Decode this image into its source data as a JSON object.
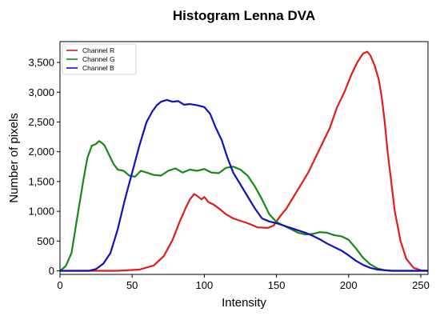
{
  "chart_data": {
    "type": "line",
    "title": "Histogram Lenna DVA",
    "xlabel": "Intensity",
    "ylabel": "Number of pixels",
    "xlim": [
      0,
      255
    ],
    "ylim": [
      -60,
      3850
    ],
    "xticks": [
      0,
      50,
      100,
      150,
      200,
      250
    ],
    "yticks": [
      0,
      500,
      1000,
      1500,
      2000,
      2500,
      3000,
      3500
    ],
    "xtick_labels": [
      "0",
      "50",
      "100",
      "150",
      "200",
      "250"
    ],
    "ytick_labels": [
      "0",
      "500",
      "1,000",
      "1,500",
      "2,000",
      "2,500",
      "3,000",
      "3,500"
    ],
    "grid": false,
    "legend_position": "top-left",
    "series": [
      {
        "name": "Channel R",
        "color": "#dd1c1c",
        "x": [
          0,
          40,
          55,
          65,
          72,
          78,
          83,
          87,
          90,
          93,
          95,
          98,
          100,
          103,
          106,
          110,
          115,
          120,
          125,
          130,
          137,
          144,
          148,
          152,
          157,
          162,
          167,
          172,
          177,
          182,
          187,
          192,
          197,
          202,
          206,
          210,
          213,
          215,
          218,
          221,
          223,
          225,
          227,
          229,
          232,
          236,
          240,
          245,
          250,
          255
        ],
        "y": [
          0,
          0,
          20,
          90,
          250,
          520,
          830,
          1050,
          1200,
          1290,
          1260,
          1200,
          1240,
          1150,
          1120,
          1050,
          950,
          880,
          840,
          800,
          730,
          720,
          760,
          900,
          1050,
          1250,
          1450,
          1650,
          1900,
          2150,
          2400,
          2750,
          3000,
          3300,
          3500,
          3650,
          3680,
          3620,
          3450,
          3200,
          2900,
          2500,
          2000,
          1600,
          1000,
          500,
          200,
          50,
          10,
          0
        ]
      },
      {
        "name": "Channel G",
        "color": "#158a15",
        "x": [
          0,
          4,
          8,
          12,
          16,
          19,
          22,
          25,
          27,
          29,
          31,
          34,
          37,
          40,
          44,
          48,
          52,
          56,
          60,
          65,
          70,
          75,
          80,
          85,
          90,
          95,
          100,
          105,
          110,
          115,
          120,
          125,
          130,
          135,
          140,
          145,
          150,
          155,
          160,
          165,
          170,
          175,
          180,
          185,
          190,
          195,
          200,
          205,
          210,
          215,
          220,
          225,
          230,
          235,
          255
        ],
        "y": [
          0,
          80,
          300,
          900,
          1500,
          1900,
          2100,
          2130,
          2180,
          2150,
          2100,
          1950,
          1800,
          1700,
          1680,
          1600,
          1580,
          1680,
          1650,
          1610,
          1600,
          1680,
          1720,
          1650,
          1700,
          1680,
          1710,
          1650,
          1640,
          1730,
          1750,
          1700,
          1600,
          1420,
          1200,
          950,
          820,
          760,
          700,
          640,
          610,
          620,
          650,
          640,
          600,
          580,
          520,
          380,
          220,
          110,
          40,
          10,
          0,
          0,
          0
        ]
      },
      {
        "name": "Channel B",
        "color": "#1010c0",
        "x": [
          0,
          20,
          25,
          30,
          35,
          40,
          45,
          50,
          55,
          60,
          64,
          67,
          70,
          74,
          78,
          82,
          86,
          90,
          95,
          100,
          104,
          108,
          112,
          116,
          120,
          125,
          130,
          135,
          140,
          145,
          150,
          155,
          160,
          165,
          170,
          175,
          180,
          185,
          190,
          195,
          200,
          205,
          210,
          215,
          220,
          230,
          255
        ],
        "y": [
          0,
          0,
          30,
          120,
          300,
          700,
          1200,
          1650,
          2100,
          2500,
          2680,
          2780,
          2840,
          2870,
          2840,
          2850,
          2790,
          2800,
          2780,
          2750,
          2640,
          2400,
          2200,
          1900,
          1650,
          1450,
          1250,
          1050,
          880,
          830,
          800,
          760,
          720,
          680,
          640,
          590,
          530,
          460,
          400,
          340,
          260,
          170,
          100,
          50,
          20,
          0,
          0
        ]
      }
    ]
  }
}
